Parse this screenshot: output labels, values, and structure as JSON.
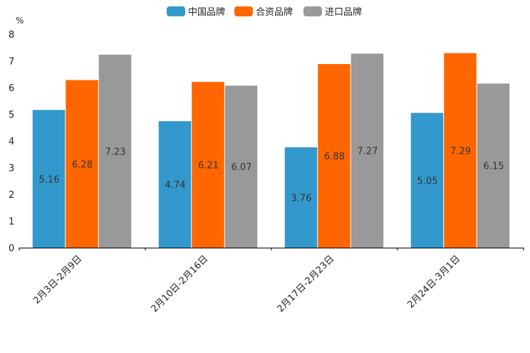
{
  "chart_data": {
    "type": "bar",
    "title": "",
    "xlabel": "",
    "ylabel": "%",
    "ylim": [
      0,
      8
    ],
    "yticks": [
      0,
      1,
      2,
      3,
      4,
      5,
      6,
      7,
      8
    ],
    "grid": false,
    "legend_position": "top-center",
    "categories": [
      "2月3日-2月9日",
      "2月10日-2月16日",
      "2月17日-2月23日",
      "2月24日-3月1日"
    ],
    "series": [
      {
        "name": "中国品牌",
        "color": "#3399cc",
        "values": [
          5.16,
          4.74,
          3.76,
          5.05
        ],
        "labels": [
          "5.16",
          "4.74",
          "3.76",
          "5.05"
        ]
      },
      {
        "name": "合资品牌",
        "color": "#ff6600",
        "values": [
          6.28,
          6.21,
          6.88,
          7.29
        ],
        "labels": [
          "6.28",
          "6.21",
          "6.88",
          "7.29"
        ]
      },
      {
        "name": "进口品牌",
        "color": "#999999",
        "values": [
          7.23,
          6.07,
          7.27,
          6.15
        ],
        "labels": [
          "7.23",
          "6.07",
          "7.27",
          "6.15"
        ]
      }
    ]
  }
}
